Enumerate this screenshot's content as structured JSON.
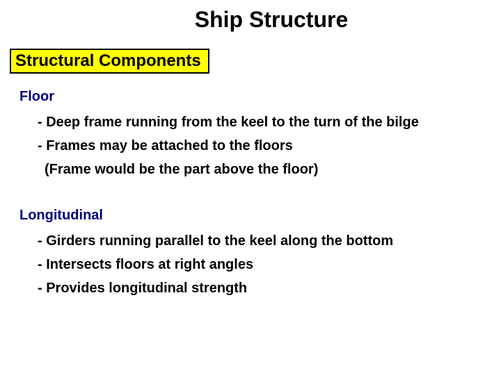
{
  "title": "Ship Structure",
  "section_label": "Structural Components",
  "colors": {
    "title_color": "#000000",
    "term_color": "#000080",
    "body_color": "#000000",
    "section_bg": "#ffff00",
    "section_border": "#000000",
    "background": "#ffffff"
  },
  "fonts": {
    "title_size": 32,
    "section_size": 24,
    "term_size": 20,
    "body_size": 20,
    "family": "Arial"
  },
  "blocks": [
    {
      "term": "Floor",
      "bullets": [
        "- Deep frame running from the keel to the turn of the bilge",
        "- Frames may  be attached to the floors"
      ],
      "note": "(Frame would be the part above the floor)"
    },
    {
      "term": "Longitudinal",
      "bullets": [
        "- Girders running parallel to the keel along the bottom",
        "- Intersects floors at right angles",
        "- Provides longitudinal strength"
      ]
    }
  ]
}
